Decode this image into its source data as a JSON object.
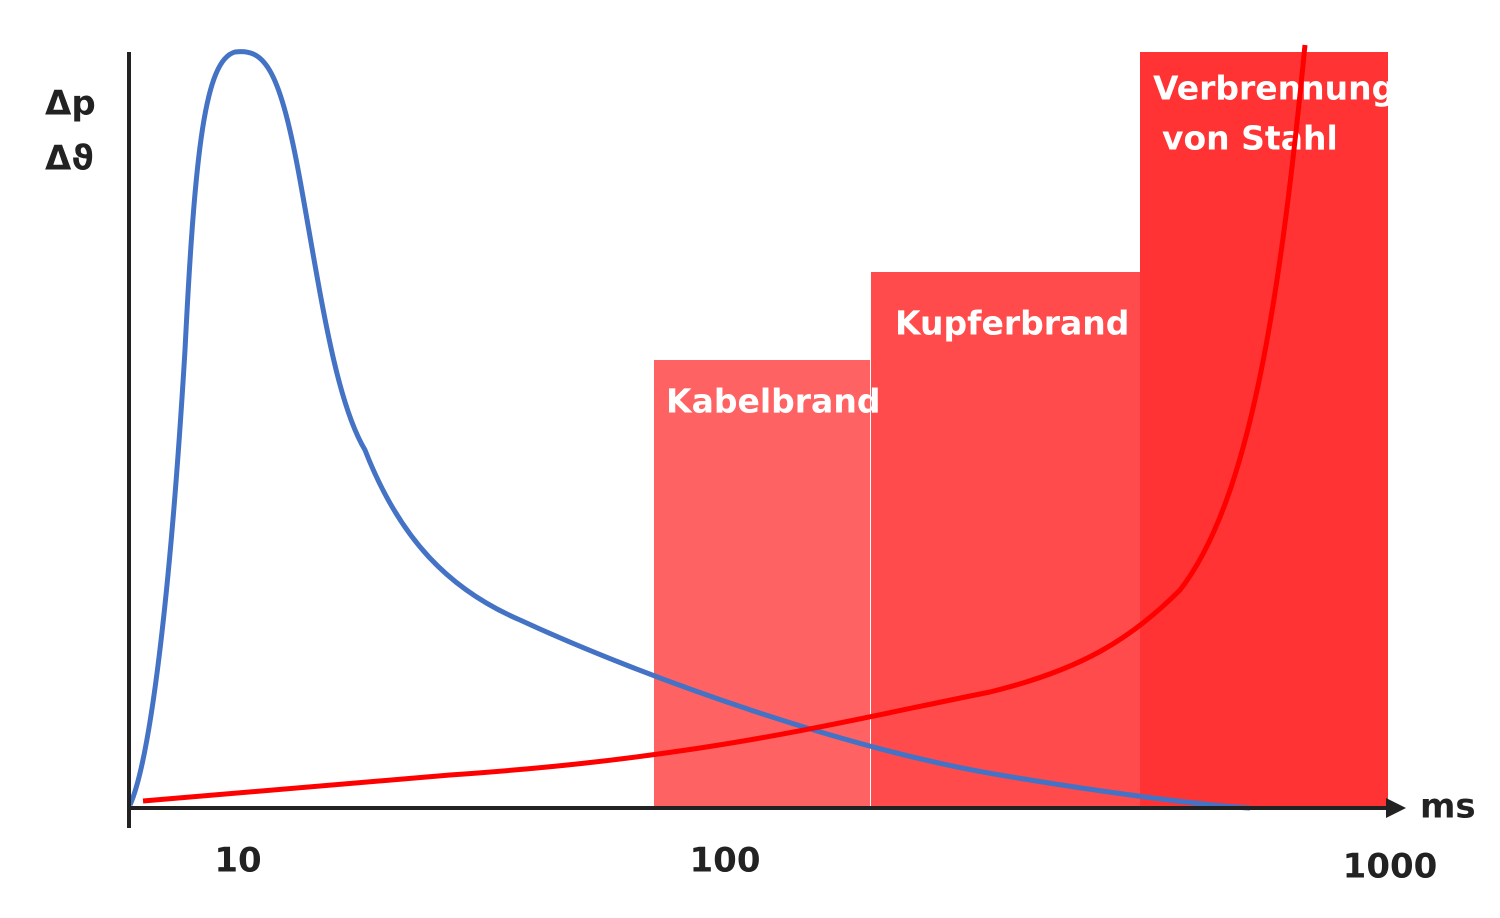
{
  "axes": {
    "y_labels": [
      "Δp",
      "Δϑ"
    ],
    "x_unit": "ms",
    "x_ticks": [
      10,
      100,
      1000
    ]
  },
  "zones": [
    {
      "label": [
        "Kabelbrand"
      ]
    },
    {
      "label": [
        "Kupferbrand"
      ]
    },
    {
      "label": [
        "Verbrennung",
        "von Stahl"
      ]
    }
  ]
}
